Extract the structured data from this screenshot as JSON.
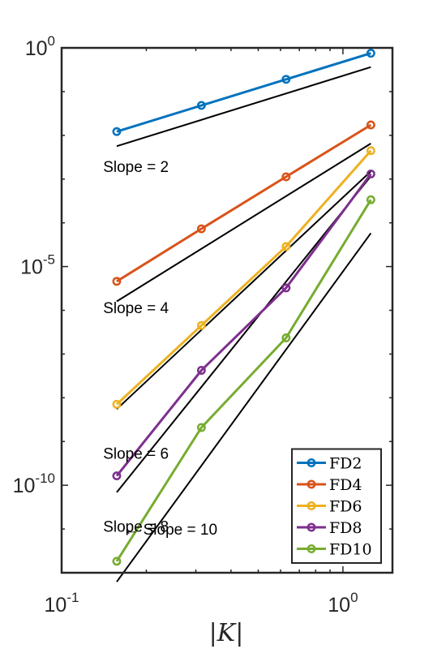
{
  "chart_data": {
    "type": "line",
    "x_scale": "log",
    "y_scale": "log",
    "xlabel": "|K|",
    "ylabel": "",
    "title": "",
    "xlim": [
      0.1,
      1.5
    ],
    "ylim": [
      1e-12,
      1
    ],
    "x_ticks": [
      {
        "value": 0.1,
        "base": "10",
        "exp": "-1"
      },
      {
        "value": 1,
        "base": "10",
        "exp": "0"
      }
    ],
    "y_ticks": [
      {
        "value": 1e-10,
        "base": "10",
        "exp": "-10"
      },
      {
        "value": 1e-05,
        "base": "10",
        "exp": "-5"
      },
      {
        "value": 1,
        "base": "10",
        "exp": "0"
      }
    ],
    "grid": false,
    "legend_position": "bottom-right",
    "series": [
      {
        "name": "FD2",
        "color": "#0072BD",
        "x": [
          0.157,
          0.314,
          0.628,
          1.257
        ],
        "y": [
          0.0122,
          0.0483,
          0.191,
          0.754
        ]
      },
      {
        "name": "FD4",
        "color": "#D95319",
        "x": [
          0.157,
          0.314,
          0.628,
          1.257
        ],
        "y": [
          4.6e-06,
          7.3e-05,
          0.00113,
          0.0173
        ]
      },
      {
        "name": "FD6",
        "color": "#EDB120",
        "x": [
          0.157,
          0.314,
          0.628,
          1.257
        ],
        "y": [
          7.1e-09,
          4.5e-07,
          2.88e-05,
          0.00446
        ]
      },
      {
        "name": "FD8",
        "color": "#7E2F8E",
        "x": [
          0.157,
          0.314,
          0.628,
          1.257
        ],
        "y": [
          1.64e-10,
          4.24e-08,
          3.25e-06,
          0.00131
        ]
      },
      {
        "name": "FD10",
        "color": "#77AC30",
        "x": [
          0.157,
          0.314,
          0.628,
          1.257
        ],
        "y": [
          1.83e-12,
          2.09e-09,
          2.34e-07,
          0.000337
        ]
      }
    ],
    "reference_lines": [
      {
        "slope": 2,
        "x": [
          0.157,
          1.257
        ],
        "y": [
          0.00566,
          0.363
        ]
      },
      {
        "slope": 4,
        "x": [
          0.157,
          1.257
        ],
        "y": [
          1.6e-06,
          0.00652
        ]
      },
      {
        "slope": 6,
        "x": [
          0.157,
          1.257
        ],
        "y": [
          5.5e-09,
          0.00151
        ]
      },
      {
        "slope": 8,
        "x": [
          0.157,
          1.257
        ],
        "y": [
          6.9e-11,
          0.00117
        ]
      },
      {
        "slope": 10,
        "x": [
          0.157,
          1.257
        ],
        "y": [
          6.2e-13,
          5.8e-05
        ]
      }
    ],
    "annotations": [
      {
        "text": "Slope = 2",
        "x": 0.1405,
        "y": 0.00145
      },
      {
        "text": "Slope = 4",
        "x": 0.1405,
        "y": 8.6e-07
      },
      {
        "text": "Slope = 6",
        "x": 0.1405,
        "y": 4e-10
      },
      {
        "text": "Slope = 8",
        "x": 0.1405,
        "y": 8.6e-12
      },
      {
        "text": "← Slope = 10",
        "x": 0.166,
        "y": 7.4e-12
      }
    ]
  }
}
